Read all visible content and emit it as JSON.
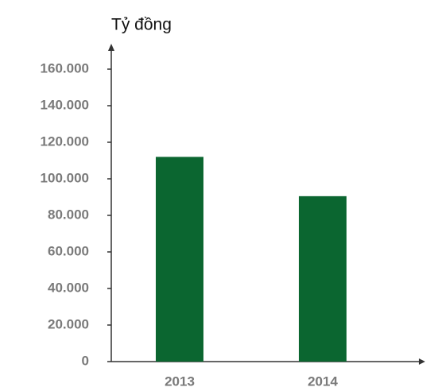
{
  "chart_data": {
    "type": "bar",
    "y_axis_label": "Tỷ đồng",
    "categories": [
      "2013",
      "2014"
    ],
    "values": [
      112000,
      90500
    ],
    "color": "#0b6630",
    "ylim": [
      0,
      160000
    ],
    "yticks": [
      0,
      {
        "value": 20000,
        "label": "20.000"
      },
      {
        "value": 40000,
        "label": "40.000"
      },
      {
        "value": 60000,
        "label": "60.000"
      },
      {
        "value": 80000,
        "label": "80.000"
      },
      {
        "value": 100000,
        "label": "100.000"
      },
      {
        "value": 120000,
        "label": "120.000"
      },
      {
        "value": 140000,
        "label": "140.000"
      },
      {
        "value": 160000,
        "label": "160.000"
      }
    ],
    "grid": false
  }
}
